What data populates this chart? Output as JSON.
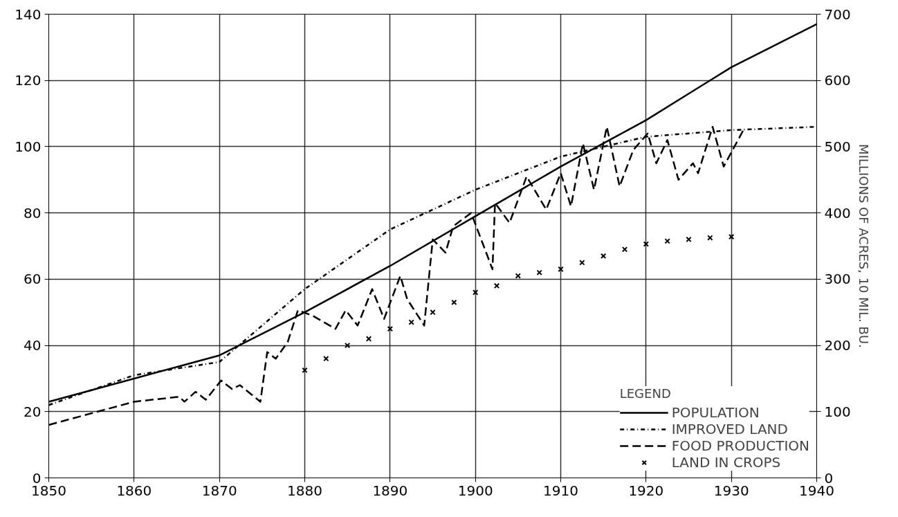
{
  "chart_data": {
    "type": "line",
    "y2label": "MILLIONS OF ACRES, 10 MIL. BU.",
    "legend_title": "LEGEND",
    "xlim": [
      1850,
      1940
    ],
    "xticks": [
      1850,
      1860,
      1870,
      1880,
      1890,
      1900,
      1910,
      1920,
      1930,
      1940
    ],
    "ylim": [
      0,
      140
    ],
    "yticks": [
      0,
      20,
      40,
      60,
      80,
      100,
      120,
      140
    ],
    "y2lim": [
      0,
      700
    ],
    "y2ticks": [
      0,
      100,
      200,
      300,
      400,
      500,
      600,
      700
    ],
    "grid": true,
    "legend": "bottom right",
    "series": [
      {
        "name": "POPULATION",
        "color": "#000000",
        "line_style": "solid",
        "x": [
          1850,
          1860,
          1870,
          1880,
          1890,
          1900,
          1910,
          1920,
          1930,
          1940
        ],
        "values": [
          23,
          30,
          37,
          50,
          64,
          79,
          94,
          108,
          124,
          137
        ]
      },
      {
        "name": "IMPROVED LAND",
        "color": "#000000",
        "line_style": "dashdot",
        "x": [
          1850,
          1860,
          1870,
          1880,
          1890,
          1900,
          1910,
          1920,
          1930,
          1940
        ],
        "values": [
          22,
          31,
          35,
          57,
          75,
          87,
          97,
          103,
          105,
          106
        ]
      },
      {
        "name": "FOOD PRODUCTION",
        "color": "#000000",
        "line_style": "dashed",
        "x": [
          1850,
          1860,
          1865.3,
          1865.9,
          1867.2,
          1868.4,
          1870.2,
          1871.5,
          1872.4,
          1874.8,
          1875.6,
          1876.6,
          1878,
          1879.2,
          1880.9,
          1883.6,
          1884.8,
          1886.2,
          1887.9,
          1889.3,
          1891.2,
          1892,
          1894,
          1895,
          1896.5,
          1897.4,
          1899.5,
          1902,
          1902.3,
          1904,
          1906,
          1908.3,
          1910,
          1911.2,
          1912.6,
          1913.9,
          1915.4,
          1916.9,
          1918.5,
          1920.2,
          1921.2,
          1922.5,
          1923.8,
          1925.5,
          1926.1,
          1927.8,
          1929.1,
          1931.4
        ],
        "values": [
          16,
          23,
          24.5,
          23,
          26,
          23.6,
          29.4,
          26.8,
          28,
          23,
          38,
          36,
          41,
          50.6,
          49,
          45,
          50.6,
          46,
          57,
          48,
          61,
          54,
          46,
          72,
          68,
          76,
          80,
          63,
          83,
          77,
          91,
          81,
          92,
          82,
          101,
          87,
          106,
          88,
          99,
          104,
          95,
          102,
          90,
          95,
          92,
          106,
          94,
          105
        ]
      },
      {
        "name": "LAND IN CROPS",
        "color": "#000000",
        "type": "scatter",
        "marker": "cross",
        "x": [
          1880,
          1882.5,
          1885,
          1887.5,
          1890,
          1892.5,
          1895,
          1897.5,
          1900,
          1902.5,
          1905,
          1907.5,
          1910,
          1912.5,
          1915,
          1917.5,
          1920,
          1922.5,
          1925,
          1927.5,
          1930
        ],
        "values": [
          32.5,
          36,
          40,
          42,
          45,
          47,
          50,
          53,
          56,
          58,
          61,
          62,
          63,
          65,
          67,
          69,
          70.6,
          71.5,
          72,
          72.5,
          72.8
        ]
      }
    ]
  }
}
